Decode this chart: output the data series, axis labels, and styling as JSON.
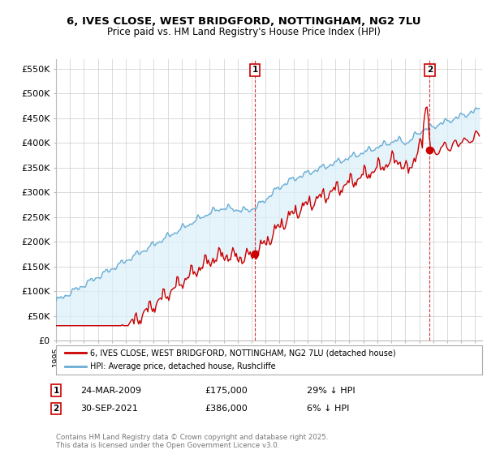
{
  "title_line1": "6, IVES CLOSE, WEST BRIDGFORD, NOTTINGHAM, NG2 7LU",
  "title_line2": "Price paid vs. HM Land Registry's House Price Index (HPI)",
  "ylabel_ticks": [
    "£0",
    "£50K",
    "£100K",
    "£150K",
    "£200K",
    "£250K",
    "£300K",
    "£350K",
    "£400K",
    "£450K",
    "£500K",
    "£550K"
  ],
  "ytick_values": [
    0,
    50000,
    100000,
    150000,
    200000,
    250000,
    300000,
    350000,
    400000,
    450000,
    500000,
    550000
  ],
  "ylim": [
    0,
    570000
  ],
  "xlim_start": 1995.0,
  "xlim_end": 2025.5,
  "hpi_color": "#6aaed6",
  "hpi_fill_color": "#daeef8",
  "price_color": "#cc0000",
  "marker1_date": 2009.23,
  "marker1_value": 175000,
  "marker2_date": 2021.75,
  "marker2_value": 386000,
  "annotation1_date": "24-MAR-2009",
  "annotation1_price": "£175,000",
  "annotation1_hpi": "29% ↓ HPI",
  "annotation2_date": "30-SEP-2021",
  "annotation2_price": "£386,000",
  "annotation2_hpi": "6% ↓ HPI",
  "legend_line1": "6, IVES CLOSE, WEST BRIDGFORD, NOTTINGHAM, NG2 7LU (detached house)",
  "legend_line2": "HPI: Average price, detached house, Rushcliffe",
  "footnote": "Contains HM Land Registry data © Crown copyright and database right 2025.\nThis data is licensed under the Open Government Licence v3.0.",
  "background_color": "#ffffff",
  "grid_color": "#cccccc"
}
